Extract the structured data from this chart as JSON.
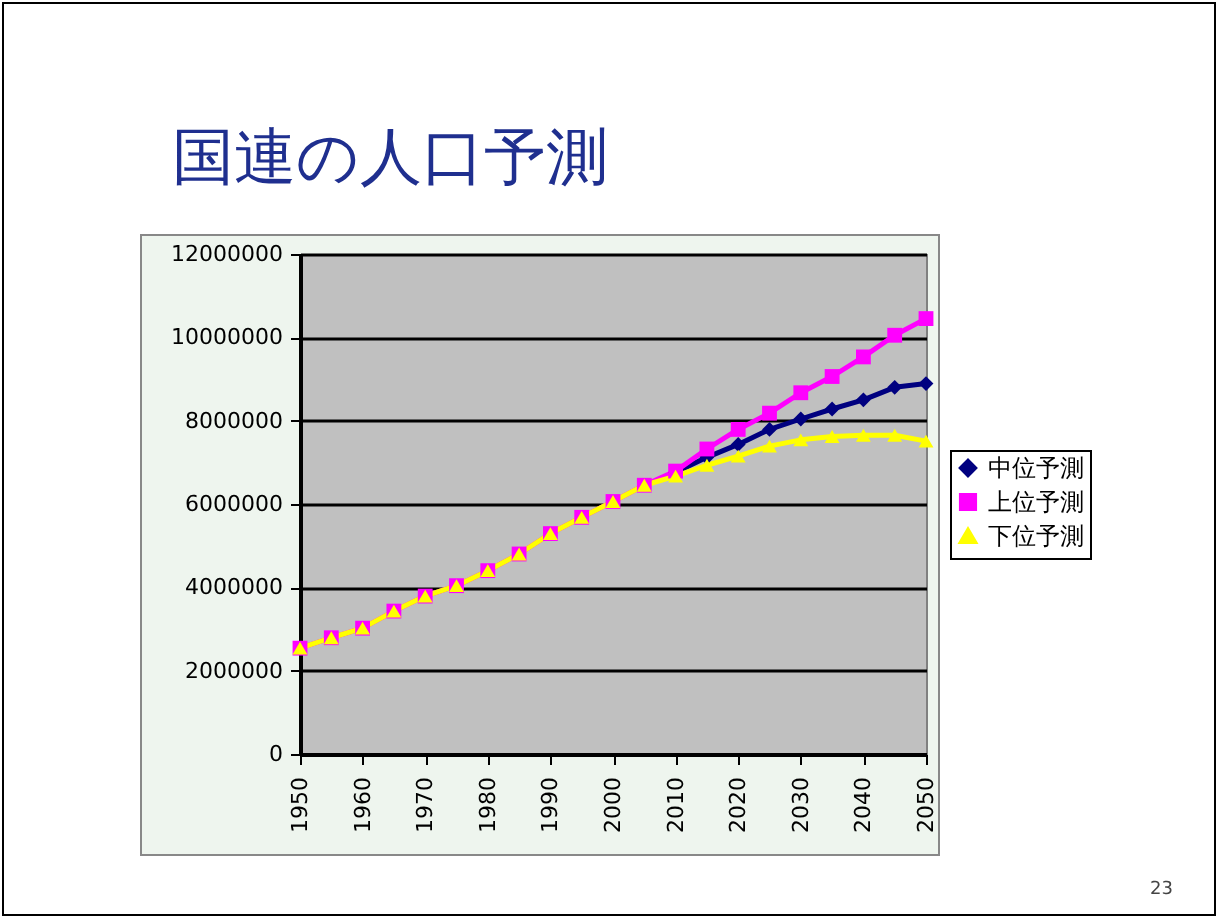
{
  "chart_data": {
    "type": "line",
    "title": "国連の人口予測",
    "x": [
      1950,
      1955,
      1960,
      1965,
      1970,
      1975,
      1980,
      1985,
      1990,
      1995,
      2000,
      2005,
      2010,
      2015,
      2020,
      2025,
      2030,
      2035,
      2040,
      2045,
      2050
    ],
    "series": [
      {
        "name": "中位予測",
        "color": "#000080",
        "marker": "diamond",
        "values": [
          null,
          null,
          null,
          null,
          null,
          null,
          null,
          null,
          null,
          null,
          null,
          null,
          6760000,
          7120000,
          7430000,
          7790000,
          8040000,
          8280000,
          8500000,
          8800000,
          8890000
        ]
      },
      {
        "name": "上位予測",
        "color": "#ff00ff",
        "marker": "square",
        "values": [
          2540000,
          2790000,
          3020000,
          3430000,
          3790000,
          4040000,
          4400000,
          4800000,
          5290000,
          5680000,
          6060000,
          6450000,
          6790000,
          7320000,
          7790000,
          8180000,
          8670000,
          9060000,
          9530000,
          10050000,
          10450000
        ]
      },
      {
        "name": "下位予測",
        "color": "#ffff00",
        "marker": "triangle",
        "values": [
          2540000,
          2790000,
          3020000,
          3430000,
          3790000,
          4040000,
          4400000,
          4800000,
          5290000,
          5680000,
          6060000,
          6450000,
          6670000,
          6930000,
          7150000,
          7390000,
          7540000,
          7620000,
          7650000,
          7650000,
          7510000
        ]
      }
    ],
    "xlim": [
      1950,
      2050
    ],
    "xticks": [
      1950,
      1960,
      1970,
      1980,
      1990,
      2000,
      2010,
      2020,
      2030,
      2040,
      2050
    ],
    "ylim": [
      0,
      12000000
    ],
    "yticks": [
      0,
      2000000,
      4000000,
      6000000,
      8000000,
      10000000,
      12000000
    ],
    "grid": "y",
    "legend": "right",
    "line_style": "solid",
    "annotations": [
      "23"
    ]
  }
}
